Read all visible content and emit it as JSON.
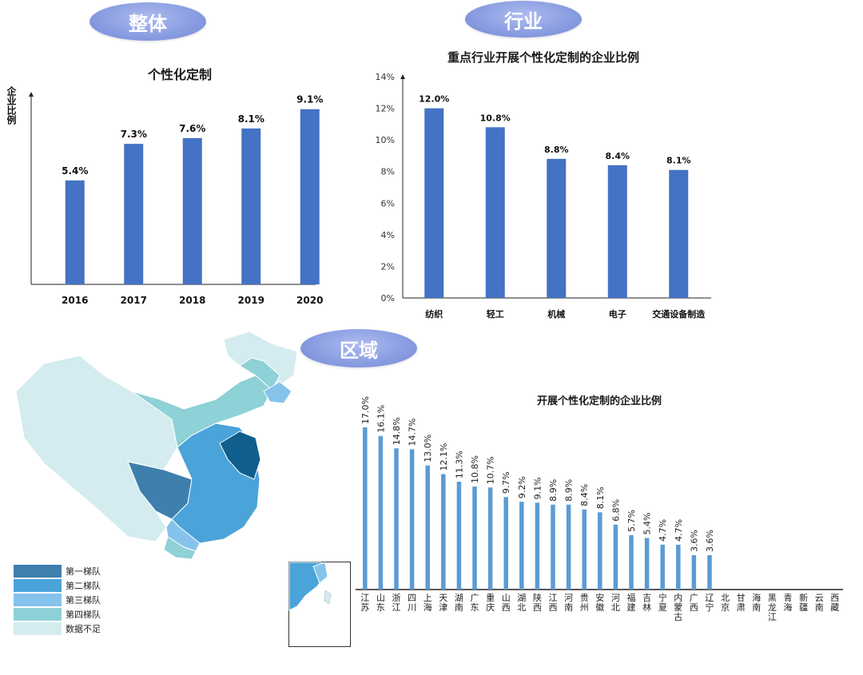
{
  "sections": {
    "overall": "整体",
    "industry": "行业",
    "region": "区域"
  },
  "colors": {
    "bar": "#4472C4",
    "region_bar": "#5B9BD5",
    "pill": "#8b9ee2",
    "tier1": "#3E7FAE",
    "tier2": "#4AA3D9",
    "tier3": "#86C3EC",
    "tier4": "#8ED1D6",
    "insufficient": "#D4ECEF",
    "dark_region": "#0F5E8C"
  },
  "chart_data": [
    {
      "type": "bar",
      "title": "个性化定制",
      "ylabel": "企业比例",
      "categories": [
        "2016",
        "2017",
        "2018",
        "2019",
        "2020"
      ],
      "values": [
        5.4,
        7.3,
        7.6,
        8.1,
        9.1
      ],
      "value_labels": [
        "5.4%",
        "7.3%",
        "7.6%",
        "8.1%",
        "9.1%"
      ],
      "ylim": [
        0,
        10
      ],
      "grid": false
    },
    {
      "type": "bar",
      "title": "重点行业开展个性化定制的企业比例",
      "categories": [
        "纺织",
        "轻工",
        "机械",
        "电子",
        "交通设备制造"
      ],
      "values": [
        12.0,
        10.8,
        8.8,
        8.4,
        8.1
      ],
      "value_labels": [
        "12.0%",
        "10.8%",
        "8.8%",
        "8.4%",
        "8.1%"
      ],
      "yticks": [
        "0%",
        "2%",
        "4%",
        "6%",
        "8%",
        "10%",
        "12%",
        "14%"
      ],
      "ylim": [
        0,
        14
      ],
      "grid": false
    },
    {
      "type": "bar",
      "title": "开展个性化定制的企业比例",
      "categories": [
        "江苏",
        "山东",
        "浙江",
        "四川",
        "上海",
        "天津",
        "湖南",
        "广东",
        "重庆",
        "山西",
        "湖北",
        "陕西",
        "江西",
        "河南",
        "贵州",
        "安徽",
        "河北",
        "福建",
        "吉林",
        "宁夏",
        "内蒙古",
        "广西",
        "辽宁",
        "北京",
        "甘肃",
        "海南",
        "黑龙江",
        "青海",
        "新疆",
        "云南",
        "西藏"
      ],
      "values": [
        17.0,
        16.1,
        14.8,
        14.7,
        13.0,
        12.1,
        11.3,
        10.8,
        10.7,
        9.7,
        9.2,
        9.1,
        8.9,
        8.9,
        8.4,
        8.1,
        6.8,
        5.7,
        5.4,
        4.7,
        4.7,
        3.6,
        3.6,
        null,
        null,
        null,
        null,
        null,
        null,
        null,
        null
      ],
      "value_labels": [
        "17.0%",
        "16.1%",
        "14.8%",
        "14.7%",
        "13.0%",
        "12.1%",
        "11.3%",
        "10.8%",
        "10.7%",
        "9.7%",
        "9.2%",
        "9.1%",
        "8.9%",
        "8.9%",
        "8.4%",
        "8.1%",
        "6.8%",
        "5.7%",
        "5.4%",
        "4.7%",
        "4.7%",
        "3.6%",
        "3.6%",
        "",
        "",
        "",
        "",
        "",
        "",
        "",
        ""
      ],
      "ylim": [
        0,
        17
      ],
      "grid": false
    }
  ],
  "map": {
    "legend": [
      {
        "label": "第一梯队",
        "color": "#3E7FAE"
      },
      {
        "label": "第二梯队",
        "color": "#4AA3D9"
      },
      {
        "label": "第三梯队",
        "color": "#86C3EC"
      },
      {
        "label": "第四梯队",
        "color": "#8ED1D6"
      },
      {
        "label": "数据不足",
        "color": "#D4ECEF"
      }
    ]
  }
}
